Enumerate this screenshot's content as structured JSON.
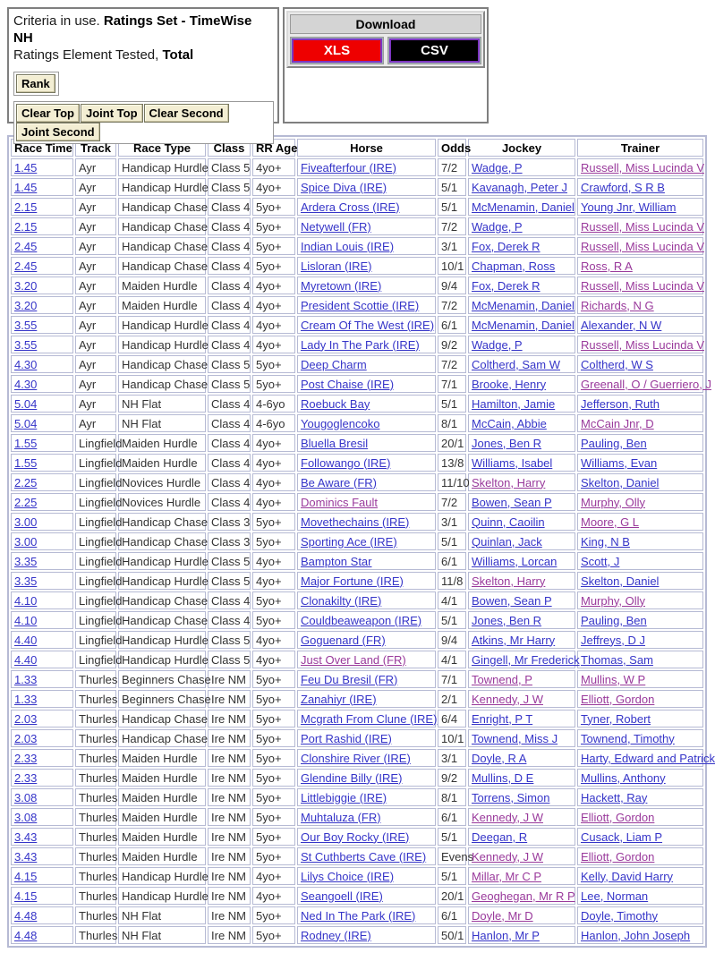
{
  "criteria": {
    "line1_prefix": "Criteria in use. ",
    "line1_bold": "Ratings Set - TimeWise NH",
    "line2_prefix": "Ratings Element Tested, ",
    "line2_bold": "Total",
    "rank_button": "Rank",
    "action_buttons": [
      "Clear Top",
      "Joint Top",
      "Clear Second",
      "Joint Second"
    ]
  },
  "download": {
    "title": "Download",
    "buttons": [
      {
        "label": "XLS",
        "bg": "#ee0000"
      },
      {
        "label": "CSV",
        "bg": "#000000"
      }
    ]
  },
  "colors": {
    "link_blue": "#3534c8",
    "link_visited_purple": "#99399b",
    "table_border": "#b6bad4",
    "button_beige": "#f3eed3",
    "download_button_border": "#7d35c1",
    "download_header_gray": "#d4d4d4",
    "xls_red": "#ee0000",
    "csv_black": "#000000"
  },
  "table": {
    "headers": [
      "Race Time",
      "Track",
      "Race Type",
      "Class",
      "RR Age",
      "Horse",
      "Odds",
      "Jockey",
      "Trainer"
    ],
    "rows": [
      {
        "time": "1.45",
        "track": "Ayr",
        "race_type": "Handicap Hurdle",
        "class": "Class 5",
        "rr_age": "4yo+",
        "horse": "Fiveafterfour (IRE)",
        "horse_visited": false,
        "odds": "7/2",
        "jockey": "Wadge, P",
        "jockey_visited": false,
        "trainer": "Russell, Miss Lucinda V",
        "trainer_visited": true
      },
      {
        "time": "1.45",
        "track": "Ayr",
        "race_type": "Handicap Hurdle",
        "class": "Class 5",
        "rr_age": "4yo+",
        "horse": "Spice Diva (IRE)",
        "horse_visited": false,
        "odds": "5/1",
        "jockey": "Kavanagh, Peter J",
        "jockey_visited": false,
        "trainer": "Crawford, S R B",
        "trainer_visited": false
      },
      {
        "time": "2.15",
        "track": "Ayr",
        "race_type": "Handicap Chase",
        "class": "Class 4",
        "rr_age": "5yo+",
        "horse": "Ardera Cross (IRE)",
        "horse_visited": false,
        "odds": "5/1",
        "jockey": "McMenamin, Daniel",
        "jockey_visited": false,
        "trainer": "Young Jnr, William",
        "trainer_visited": false
      },
      {
        "time": "2.15",
        "track": "Ayr",
        "race_type": "Handicap Chase",
        "class": "Class 4",
        "rr_age": "5yo+",
        "horse": "Netywell (FR)",
        "horse_visited": false,
        "odds": "7/2",
        "jockey": "Wadge, P",
        "jockey_visited": false,
        "trainer": "Russell, Miss Lucinda V",
        "trainer_visited": true
      },
      {
        "time": "2.45",
        "track": "Ayr",
        "race_type": "Handicap Chase",
        "class": "Class 4",
        "rr_age": "5yo+",
        "horse": "Indian Louis (IRE)",
        "horse_visited": false,
        "odds": "3/1",
        "jockey": "Fox, Derek R",
        "jockey_visited": false,
        "trainer": "Russell, Miss Lucinda V",
        "trainer_visited": true
      },
      {
        "time": "2.45",
        "track": "Ayr",
        "race_type": "Handicap Chase",
        "class": "Class 4",
        "rr_age": "5yo+",
        "horse": "Lisloran (IRE)",
        "horse_visited": false,
        "odds": "10/1",
        "jockey": "Chapman, Ross",
        "jockey_visited": false,
        "trainer": "Ross, R A",
        "trainer_visited": true
      },
      {
        "time": "3.20",
        "track": "Ayr",
        "race_type": "Maiden Hurdle",
        "class": "Class 4",
        "rr_age": "4yo+",
        "horse": "Myretown (IRE)",
        "horse_visited": false,
        "odds": "9/4",
        "jockey": "Fox, Derek R",
        "jockey_visited": false,
        "trainer": "Russell, Miss Lucinda V",
        "trainer_visited": true
      },
      {
        "time": "3.20",
        "track": "Ayr",
        "race_type": "Maiden Hurdle",
        "class": "Class 4",
        "rr_age": "4yo+",
        "horse": "President Scottie (IRE)",
        "horse_visited": false,
        "odds": "7/2",
        "jockey": "McMenamin, Daniel",
        "jockey_visited": false,
        "trainer": "Richards, N G",
        "trainer_visited": true
      },
      {
        "time": "3.55",
        "track": "Ayr",
        "race_type": "Handicap Hurdle",
        "class": "Class 4",
        "rr_age": "4yo+",
        "horse": "Cream Of The West (IRE)",
        "horse_visited": false,
        "odds": "6/1",
        "jockey": "McMenamin, Daniel",
        "jockey_visited": false,
        "trainer": "Alexander, N W",
        "trainer_visited": false
      },
      {
        "time": "3.55",
        "track": "Ayr",
        "race_type": "Handicap Hurdle",
        "class": "Class 4",
        "rr_age": "4yo+",
        "horse": "Lady In The Park (IRE)",
        "horse_visited": false,
        "odds": "9/2",
        "jockey": "Wadge, P",
        "jockey_visited": false,
        "trainer": "Russell, Miss Lucinda V",
        "trainer_visited": true
      },
      {
        "time": "4.30",
        "track": "Ayr",
        "race_type": "Handicap Chase",
        "class": "Class 5",
        "rr_age": "5yo+",
        "horse": "Deep Charm",
        "horse_visited": false,
        "odds": "7/2",
        "jockey": "Coltherd, Sam W",
        "jockey_visited": false,
        "trainer": "Coltherd, W S",
        "trainer_visited": false
      },
      {
        "time": "4.30",
        "track": "Ayr",
        "race_type": "Handicap Chase",
        "class": "Class 5",
        "rr_age": "5yo+",
        "horse": "Post Chaise (IRE)",
        "horse_visited": false,
        "odds": "7/1",
        "jockey": "Brooke, Henry",
        "jockey_visited": false,
        "trainer": "Greenall, O / Guerriero, J",
        "trainer_visited": true
      },
      {
        "time": "5.04",
        "track": "Ayr",
        "race_type": "NH Flat",
        "class": "Class 4",
        "rr_age": "4-6yo",
        "horse": "Roebuck Bay",
        "horse_visited": false,
        "odds": "5/1",
        "jockey": "Hamilton, Jamie",
        "jockey_visited": false,
        "trainer": "Jefferson, Ruth",
        "trainer_visited": false
      },
      {
        "time": "5.04",
        "track": "Ayr",
        "race_type": "NH Flat",
        "class": "Class 4",
        "rr_age": "4-6yo",
        "horse": "Yougoglencoko",
        "horse_visited": false,
        "odds": "8/1",
        "jockey": "McCain, Abbie",
        "jockey_visited": false,
        "trainer": "McCain Jnr, D",
        "trainer_visited": true
      },
      {
        "time": "1.55",
        "track": "Lingfield",
        "race_type": "Maiden Hurdle",
        "class": "Class 4",
        "rr_age": "4yo+",
        "horse": "Bluella Bresil",
        "horse_visited": false,
        "odds": "20/1",
        "jockey": "Jones, Ben R",
        "jockey_visited": false,
        "trainer": "Pauling, Ben",
        "trainer_visited": false
      },
      {
        "time": "1.55",
        "track": "Lingfield",
        "race_type": "Maiden Hurdle",
        "class": "Class 4",
        "rr_age": "4yo+",
        "horse": "Followango (IRE)",
        "horse_visited": false,
        "odds": "13/8",
        "jockey": "Williams, Isabel",
        "jockey_visited": false,
        "trainer": "Williams, Evan",
        "trainer_visited": false
      },
      {
        "time": "2.25",
        "track": "Lingfield",
        "race_type": "Novices Hurdle",
        "class": "Class 4",
        "rr_age": "4yo+",
        "horse": "Be Aware (FR)",
        "horse_visited": false,
        "odds": "11/10",
        "jockey": "Skelton, Harry",
        "jockey_visited": true,
        "trainer": "Skelton, Daniel",
        "trainer_visited": false
      },
      {
        "time": "2.25",
        "track": "Lingfield",
        "race_type": "Novices Hurdle",
        "class": "Class 4",
        "rr_age": "4yo+",
        "horse": "Dominics Fault",
        "horse_visited": true,
        "odds": "7/2",
        "jockey": "Bowen, Sean P",
        "jockey_visited": false,
        "trainer": "Murphy, Olly",
        "trainer_visited": true
      },
      {
        "time": "3.00",
        "track": "Lingfield",
        "race_type": "Handicap Chase",
        "class": "Class 3",
        "rr_age": "5yo+",
        "horse": "Movethechains (IRE)",
        "horse_visited": false,
        "odds": "3/1",
        "jockey": "Quinn, Caoilin",
        "jockey_visited": false,
        "trainer": "Moore, G L",
        "trainer_visited": true
      },
      {
        "time": "3.00",
        "track": "Lingfield",
        "race_type": "Handicap Chase",
        "class": "Class 3",
        "rr_age": "5yo+",
        "horse": "Sporting Ace (IRE)",
        "horse_visited": false,
        "odds": "5/1",
        "jockey": "Quinlan, Jack",
        "jockey_visited": false,
        "trainer": "King, N B",
        "trainer_visited": false
      },
      {
        "time": "3.35",
        "track": "Lingfield",
        "race_type": "Handicap Hurdle",
        "class": "Class 5",
        "rr_age": "4yo+",
        "horse": "Bampton Star",
        "horse_visited": false,
        "odds": "6/1",
        "jockey": "Williams, Lorcan",
        "jockey_visited": false,
        "trainer": "Scott, J",
        "trainer_visited": false
      },
      {
        "time": "3.35",
        "track": "Lingfield",
        "race_type": "Handicap Hurdle",
        "class": "Class 5",
        "rr_age": "4yo+",
        "horse": "Major Fortune (IRE)",
        "horse_visited": false,
        "odds": "11/8",
        "jockey": "Skelton, Harry",
        "jockey_visited": true,
        "trainer": "Skelton, Daniel",
        "trainer_visited": false
      },
      {
        "time": "4.10",
        "track": "Lingfield",
        "race_type": "Handicap Chase",
        "class": "Class 4",
        "rr_age": "5yo+",
        "horse": "Clonakilty (IRE)",
        "horse_visited": false,
        "odds": "4/1",
        "jockey": "Bowen, Sean P",
        "jockey_visited": false,
        "trainer": "Murphy, Olly",
        "trainer_visited": true
      },
      {
        "time": "4.10",
        "track": "Lingfield",
        "race_type": "Handicap Chase",
        "class": "Class 4",
        "rr_age": "5yo+",
        "horse": "Couldbeaweapon (IRE)",
        "horse_visited": false,
        "odds": "5/1",
        "jockey": "Jones, Ben R",
        "jockey_visited": false,
        "trainer": "Pauling, Ben",
        "trainer_visited": false
      },
      {
        "time": "4.40",
        "track": "Lingfield",
        "race_type": "Handicap Hurdle",
        "class": "Class 5",
        "rr_age": "4yo+",
        "horse": "Goguenard (FR)",
        "horse_visited": false,
        "odds": "9/4",
        "jockey": "Atkins, Mr Harry",
        "jockey_visited": false,
        "trainer": "Jeffreys, D J",
        "trainer_visited": false
      },
      {
        "time": "4.40",
        "track": "Lingfield",
        "race_type": "Handicap Hurdle",
        "class": "Class 5",
        "rr_age": "4yo+",
        "horse": "Just Over Land (FR)",
        "horse_visited": true,
        "odds": "4/1",
        "jockey": "Gingell, Mr Frederick",
        "jockey_visited": false,
        "trainer": "Thomas, Sam",
        "trainer_visited": false
      },
      {
        "time": "1.33",
        "track": "Thurles",
        "race_type": "Beginners Chase",
        "class": "Ire NM",
        "rr_age": "5yo+",
        "horse": "Feu Du Bresil (FR)",
        "horse_visited": false,
        "odds": "7/1",
        "jockey": "Townend, P",
        "jockey_visited": true,
        "trainer": "Mullins, W P",
        "trainer_visited": true
      },
      {
        "time": "1.33",
        "track": "Thurles",
        "race_type": "Beginners Chase",
        "class": "Ire NM",
        "rr_age": "5yo+",
        "horse": "Zanahiyr (IRE)",
        "horse_visited": false,
        "odds": "2/1",
        "jockey": "Kennedy, J W",
        "jockey_visited": true,
        "trainer": "Elliott, Gordon",
        "trainer_visited": true
      },
      {
        "time": "2.03",
        "track": "Thurles",
        "race_type": "Handicap Chase",
        "class": "Ire NM",
        "rr_age": "5yo+",
        "horse": "Mcgrath From Clune (IRE)",
        "horse_visited": false,
        "odds": "6/4",
        "jockey": "Enright, P T",
        "jockey_visited": false,
        "trainer": "Tyner, Robert",
        "trainer_visited": false
      },
      {
        "time": "2.03",
        "track": "Thurles",
        "race_type": "Handicap Chase",
        "class": "Ire NM",
        "rr_age": "5yo+",
        "horse": "Port Rashid (IRE)",
        "horse_visited": false,
        "odds": "10/1",
        "jockey": "Townend, Miss J",
        "jockey_visited": false,
        "trainer": "Townend, Timothy",
        "trainer_visited": false
      },
      {
        "time": "2.33",
        "track": "Thurles",
        "race_type": "Maiden Hurdle",
        "class": "Ire NM",
        "rr_age": "5yo+",
        "horse": "Clonshire River (IRE)",
        "horse_visited": false,
        "odds": "3/1",
        "jockey": "Doyle, R A",
        "jockey_visited": false,
        "trainer": "Harty, Edward and Patrick",
        "trainer_visited": false
      },
      {
        "time": "2.33",
        "track": "Thurles",
        "race_type": "Maiden Hurdle",
        "class": "Ire NM",
        "rr_age": "5yo+",
        "horse": "Glendine Billy (IRE)",
        "horse_visited": false,
        "odds": "9/2",
        "jockey": "Mullins, D E",
        "jockey_visited": false,
        "trainer": "Mullins, Anthony",
        "trainer_visited": false
      },
      {
        "time": "3.08",
        "track": "Thurles",
        "race_type": "Maiden Hurdle",
        "class": "Ire NM",
        "rr_age": "5yo+",
        "horse": "Littlebiggie (IRE)",
        "horse_visited": false,
        "odds": "8/1",
        "jockey": "Torrens, Simon",
        "jockey_visited": false,
        "trainer": "Hackett, Ray",
        "trainer_visited": false
      },
      {
        "time": "3.08",
        "track": "Thurles",
        "race_type": "Maiden Hurdle",
        "class": "Ire NM",
        "rr_age": "5yo+",
        "horse": "Muhtaluza (FR)",
        "horse_visited": false,
        "odds": "6/1",
        "jockey": "Kennedy, J W",
        "jockey_visited": true,
        "trainer": "Elliott, Gordon",
        "trainer_visited": true
      },
      {
        "time": "3.43",
        "track": "Thurles",
        "race_type": "Maiden Hurdle",
        "class": "Ire NM",
        "rr_age": "5yo+",
        "horse": "Our Boy Rocky (IRE)",
        "horse_visited": false,
        "odds": "5/1",
        "jockey": "Deegan, R",
        "jockey_visited": false,
        "trainer": "Cusack, Liam P",
        "trainer_visited": false
      },
      {
        "time": "3.43",
        "track": "Thurles",
        "race_type": "Maiden Hurdle",
        "class": "Ire NM",
        "rr_age": "5yo+",
        "horse": "St Cuthberts Cave (IRE)",
        "horse_visited": false,
        "odds": "Evens",
        "jockey": "Kennedy, J W",
        "jockey_visited": true,
        "trainer": "Elliott, Gordon",
        "trainer_visited": true
      },
      {
        "time": "4.15",
        "track": "Thurles",
        "race_type": "Handicap Hurdle",
        "class": "Ire NM",
        "rr_age": "4yo+",
        "horse": "Lilys Choice (IRE)",
        "horse_visited": false,
        "odds": "5/1",
        "jockey": "Millar, Mr C P",
        "jockey_visited": true,
        "trainer": "Kelly, David Harry",
        "trainer_visited": false
      },
      {
        "time": "4.15",
        "track": "Thurles",
        "race_type": "Handicap Hurdle",
        "class": "Ire NM",
        "rr_age": "4yo+",
        "horse": "Seangoell (IRE)",
        "horse_visited": false,
        "odds": "20/1",
        "jockey": "Geoghegan, Mr R P",
        "jockey_visited": true,
        "trainer": "Lee, Norman",
        "trainer_visited": false
      },
      {
        "time": "4.48",
        "track": "Thurles",
        "race_type": "NH Flat",
        "class": "Ire NM",
        "rr_age": "5yo+",
        "horse": "Ned In The Park (IRE)",
        "horse_visited": false,
        "odds": "6/1",
        "jockey": "Doyle, Mr D",
        "jockey_visited": true,
        "trainer": "Doyle, Timothy",
        "trainer_visited": false
      },
      {
        "time": "4.48",
        "track": "Thurles",
        "race_type": "NH Flat",
        "class": "Ire NM",
        "rr_age": "5yo+",
        "horse": "Rodney (IRE)",
        "horse_visited": false,
        "odds": "50/1",
        "jockey": "Hanlon, Mr P",
        "jockey_visited": false,
        "trainer": "Hanlon, John Joseph",
        "trainer_visited": false
      }
    ]
  }
}
